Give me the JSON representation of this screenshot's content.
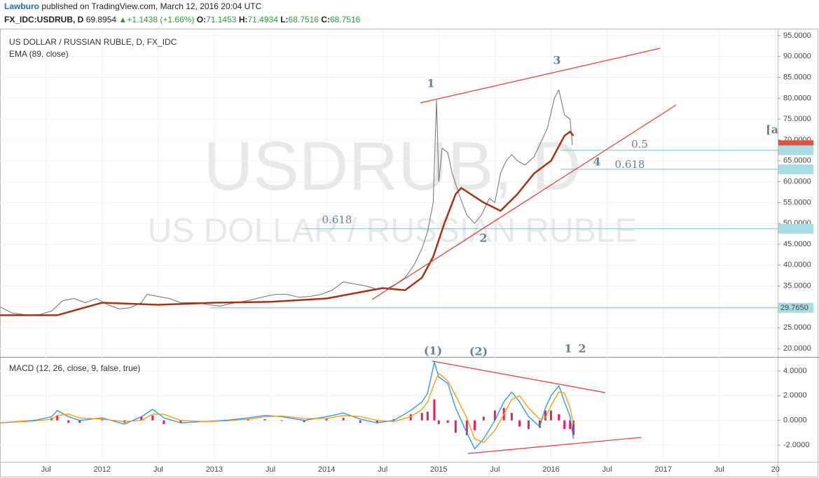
{
  "header": {
    "author": "Lawburo",
    "published": "published on TradingView.com, March 12, 2016 20:04 UTC",
    "symbol": "FX_IDC:USDRUB, D",
    "last": "69.8954",
    "change": "+1.1438 (+1.66%)",
    "ohlc": [
      {
        "label": "O:",
        "value": "71.1453"
      },
      {
        "label": "H:",
        "value": "71.4934"
      },
      {
        "label": "L:",
        "value": "68.7516"
      },
      {
        "label": "C:",
        "value": "68.7516"
      }
    ]
  },
  "chart_data": [
    {
      "type": "line",
      "title": "US DOLLAR / RUSSIAN RUBLE, D, FX_IDC",
      "watermark": "USDRUB, D",
      "watermark_subtitle": "US DOLLAR / RUSSIAN RUBLE",
      "grid": true,
      "xlim": [
        2011.09,
        2018.02
      ],
      "ylim": [
        18,
        96.5
      ],
      "yticks": [
        {
          "value": 20,
          "label": "20.0000"
        },
        {
          "value": 25,
          "label": "25.0000"
        },
        {
          "value": 30,
          "label": "30.0000"
        },
        {
          "value": 35,
          "label": "35.0000"
        },
        {
          "value": 40,
          "label": "40.0000"
        },
        {
          "value": 45,
          "label": "45.0000"
        },
        {
          "value": 50,
          "label": "50.0000"
        },
        {
          "value": 55,
          "label": "55.0000"
        },
        {
          "value": 60,
          "label": "60.0000"
        },
        {
          "value": 65,
          "label": "65.0000"
        },
        {
          "value": 70,
          "label": "70.0000"
        },
        {
          "value": 75,
          "label": "75.0000"
        },
        {
          "value": 80,
          "label": "80.0000"
        },
        {
          "value": 85,
          "label": "85.0000"
        },
        {
          "value": 90,
          "label": "90.0000"
        },
        {
          "value": 95,
          "label": "95.0000"
        }
      ],
      "series": [
        {
          "name": "USDRUB",
          "color": "#707070",
          "x": [
            2011.09,
            2011.2,
            2011.35,
            2011.45,
            2011.55,
            2011.65,
            2011.75,
            2011.85,
            2011.95,
            2012.05,
            2012.15,
            2012.25,
            2012.35,
            2012.4,
            2012.5,
            2012.6,
            2012.7,
            2012.85,
            2012.95,
            2013.05,
            2013.15,
            2013.3,
            2013.45,
            2013.55,
            2013.65,
            2013.75,
            2013.85,
            2013.95,
            2014.05,
            2014.15,
            2014.25,
            2014.35,
            2014.45,
            2014.55,
            2014.62,
            2014.7,
            2014.78,
            2014.85,
            2014.9,
            2014.95,
            2014.98,
            2015.0,
            2015.03,
            2015.08,
            2015.12,
            2015.18,
            2015.25,
            2015.32,
            2015.38,
            2015.45,
            2015.5,
            2015.55,
            2015.6,
            2015.65,
            2015.7,
            2015.77,
            2015.85,
            2015.92,
            2015.97,
            2016.03,
            2016.07,
            2016.12,
            2016.17,
            2016.19
          ],
          "values": [
            30,
            28.5,
            28,
            28.2,
            29,
            31.5,
            32,
            31,
            32,
            30.5,
            29.5,
            29.8,
            31,
            33,
            32.5,
            32,
            31,
            31,
            30.5,
            30.2,
            30.8,
            31.5,
            32.5,
            33,
            33,
            32.3,
            32.5,
            33,
            34,
            36,
            35.5,
            35,
            34.2,
            34.5,
            35.5,
            37,
            40,
            44,
            48,
            55,
            79.5,
            60,
            68,
            67,
            62,
            57,
            52,
            50,
            52,
            56,
            55,
            62,
            65,
            66.5,
            65,
            64,
            66,
            70,
            73,
            80,
            82,
            76,
            75,
            68.75
          ]
        },
        {
          "name": "EMA (89, close)",
          "color": "#a83214",
          "x": [
            2011.09,
            2011.6,
            2012.0,
            2012.5,
            2013.0,
            2013.5,
            2014.0,
            2014.5,
            2014.7,
            2014.85,
            2014.95,
            2015.05,
            2015.15,
            2015.2,
            2015.4,
            2015.55,
            2015.7,
            2015.85,
            2016.0,
            2016.12,
            2016.17,
            2016.2
          ],
          "values": [
            28,
            28,
            31,
            30.5,
            31,
            31.2,
            32,
            34.5,
            34,
            37,
            42,
            50,
            57,
            58.5,
            55,
            53,
            57,
            62,
            65,
            71,
            72,
            71
          ]
        }
      ],
      "price_markers": [
        {
          "value": 68.7516,
          "color": "#e0523f",
          "text_color": "#ffffff"
        },
        {
          "value": 67.5269,
          "color": "#a9dce3",
          "text_color": "#333333"
        },
        {
          "value": 62.9687,
          "color": "#a9dce3",
          "text_color": "#333333"
        },
        {
          "value": 48.7299,
          "color": "#a9dce3",
          "text_color": "#333333"
        },
        {
          "value": 29.765,
          "label": "29.7650",
          "color": "#a9dce3",
          "text_color": "#333333"
        }
      ],
      "annotations": [
        "1",
        "2",
        "3",
        "4",
        "0.5",
        "0.618",
        "0.618",
        "[a",
        "(1)",
        "(2)",
        "1",
        "2"
      ]
    },
    {
      "type": "macd",
      "title": "MACD (12, 26, close, 9, false, true)",
      "grid": true,
      "xlim": [
        2011.09,
        2018.02
      ],
      "ylim": [
        -3.36,
        5.02
      ],
      "xticks": [
        {
          "value": 2011.5,
          "label": "Jul"
        },
        2012,
        {
          "value": 2012.5,
          "label": "Jul"
        },
        2013,
        {
          "value": 2013.5,
          "label": "Jul"
        },
        2014,
        {
          "value": 2014.5,
          "label": "Jul"
        },
        2015,
        {
          "value": 2015.5,
          "label": "Jul"
        },
        2016,
        {
          "value": 2016.5,
          "label": "Jul"
        },
        2017,
        {
          "value": 2017.5,
          "label": "Jul"
        },
        {
          "value": 2018,
          "label": "20"
        }
      ],
      "yticks": [
        {
          "value": -2,
          "label": "-2.0000"
        },
        {
          "value": 0,
          "label": "0.0000"
        },
        {
          "value": 2,
          "label": "2.0000"
        },
        {
          "value": 4,
          "label": "4.0000"
        }
      ],
      "x": [
        2011.09,
        2011.4,
        2011.55,
        2011.6,
        2011.7,
        2011.8,
        2012.0,
        2012.2,
        2012.35,
        2012.45,
        2012.55,
        2012.7,
        2012.9,
        2013.1,
        2013.3,
        2013.45,
        2013.6,
        2013.8,
        2014.0,
        2014.15,
        2014.3,
        2014.45,
        2014.6,
        2014.75,
        2014.85,
        2014.9,
        2014.96,
        2015.0,
        2015.08,
        2015.15,
        2015.25,
        2015.32,
        2015.4,
        2015.5,
        2015.58,
        2015.65,
        2015.72,
        2015.8,
        2015.9,
        2015.95,
        2016.0,
        2016.07,
        2016.12,
        2016.17,
        2016.2
      ],
      "histogram": {
        "color": "#e91e63",
        "values": [
          0,
          0.05,
          0.2,
          0.4,
          -0.2,
          -0.2,
          0.1,
          -0.2,
          0.3,
          0.4,
          -0.3,
          -0.2,
          0,
          0.05,
          0.1,
          0.1,
          -0.05,
          -0.15,
          0.15,
          0.2,
          -0.2,
          -0.2,
          0.1,
          0.5,
          0.6,
          0.7,
          1.7,
          -0.3,
          -0.2,
          -1,
          -1.2,
          -0.8,
          0.3,
          0.8,
          1,
          0.6,
          -0.5,
          -0.7,
          -0.6,
          0.8,
          0.8,
          0.5,
          -0.7,
          -0.7,
          -1.2
        ]
      },
      "series": [
        {
          "color": "#2196f3",
          "values": [
            -0.2,
            0,
            0.3,
            0.8,
            0.3,
            0,
            0.2,
            -0.3,
            0.3,
            0.9,
            0.2,
            -0.2,
            -0.1,
            0,
            0.2,
            0.4,
            0.3,
            0,
            0.3,
            0.6,
            0.1,
            -0.2,
            0,
            0.8,
            1.5,
            2.2,
            4.7,
            3.5,
            3,
            1,
            -1,
            -2.3,
            -1.5,
            0,
            1.5,
            2.3,
            1.5,
            0.3,
            -0.5,
            1,
            2,
            2.8,
            1.5,
            0.3,
            -1.5
          ]
        },
        {
          "color": "#ff9800",
          "values": [
            -0.2,
            -0.05,
            0.1,
            0.4,
            0.5,
            0.2,
            0.1,
            -0.1,
            0,
            0.5,
            0.5,
            0,
            -0.1,
            -0.05,
            0.1,
            0.3,
            0.35,
            0.15,
            0.15,
            0.4,
            0.3,
            0,
            -0.1,
            0.3,
            0.9,
            1.5,
            3,
            3.8,
            3.2,
            2,
            0.2,
            -1.5,
            -1.8,
            -0.8,
            0.5,
            1.7,
            2,
            1,
            0.1,
            0.2,
            1.2,
            2.3,
            2.2,
            1,
            -0.3
          ]
        }
      ]
    }
  ]
}
